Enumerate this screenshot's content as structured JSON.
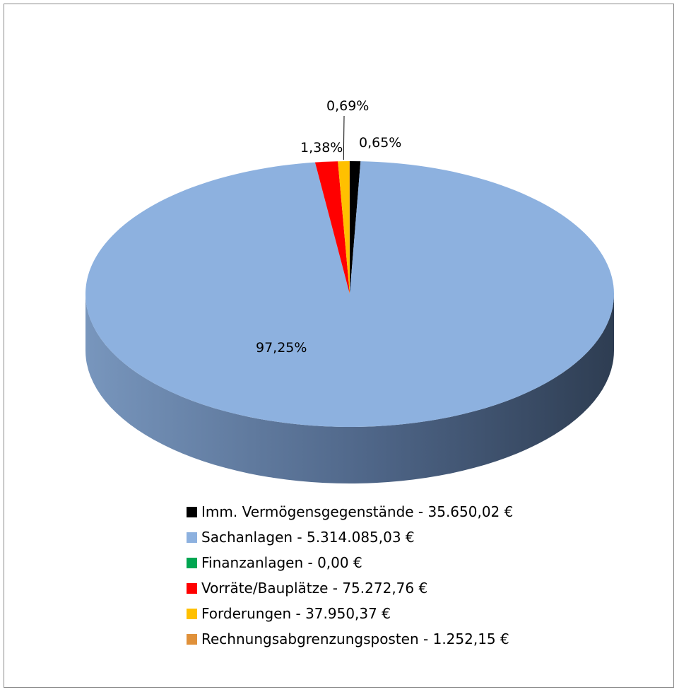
{
  "chart_data": {
    "type": "pie",
    "series": [
      {
        "name": "Imm. Vermögensgegenstände - 35.650,02 €",
        "value": 35650.02,
        "label": "0,65%",
        "color": "#000000"
      },
      {
        "name": "Sachanlagen - 5.314.085,03 €",
        "value": 5314085.03,
        "label": "97,25%",
        "color": "#8DB1DF"
      },
      {
        "name": "Finanzanlagen - 0,00 €",
        "value": 0.0,
        "label": "",
        "color": "#00A651"
      },
      {
        "name": "Vorräte/Bauplätze - 75.272,76 €",
        "value": 75272.76,
        "label": "1,38%",
        "color": "#FF0000"
      },
      {
        "name": "Forderungen - 37.950,37 €",
        "value": 37950.37,
        "label": "0,69%",
        "color": "#FFC000"
      },
      {
        "name": "Rechnungsabgrenzungsposten - 1.252,15 €",
        "value": 1252.15,
        "label": "",
        "color": "#E0913A"
      }
    ],
    "legend_position": "bottom",
    "style": "3d-pie"
  }
}
